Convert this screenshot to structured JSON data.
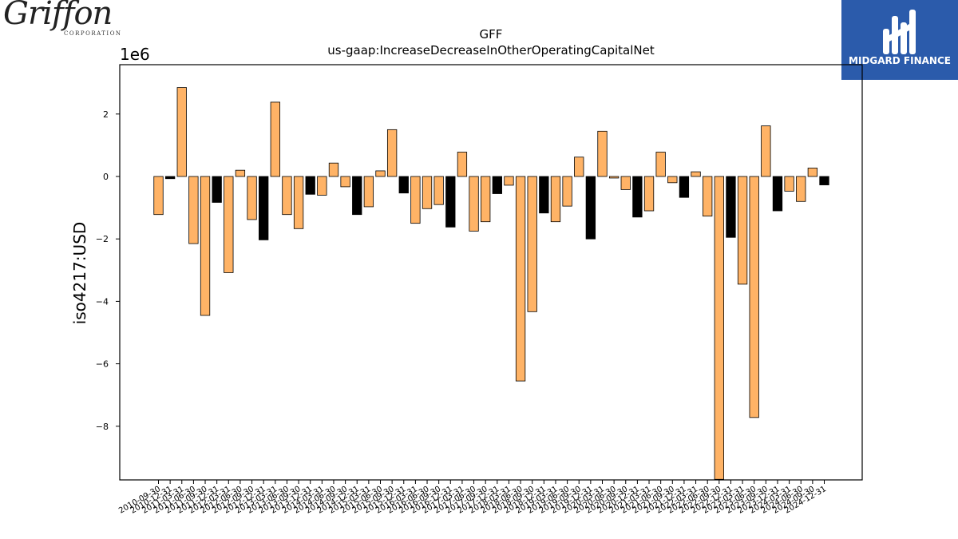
{
  "branding": {
    "left_logo": {
      "name": "Griffon",
      "subtitle": "CORPORATION"
    },
    "right_logo": {
      "name": "MIDGARD FINANCE",
      "background": "#2b5bab"
    }
  },
  "chart_data": {
    "type": "bar",
    "title": "GFF",
    "subtitle": "us-gaap:IncreaseDecreaseInOtherOperatingCapitalNet",
    "xlabel": "",
    "ylabel": "iso4217:USD",
    "y_scale_label": "1e6",
    "ylim": [
      -9.7,
      3.5
    ],
    "yticks": [
      -8,
      -6,
      -4,
      -2,
      0,
      2
    ],
    "ytick_labels": [
      "−8",
      "−6",
      "−4",
      "−2",
      "0",
      "2"
    ],
    "grid": false,
    "colors": {
      "annual": "#000000",
      "quarterly": "#ffb366",
      "edge": "#000000"
    },
    "categories": [
      "2010-09-30",
      "2010-12-31",
      "2011-03-31",
      "2011-06-30",
      "2011-09-30",
      "2011-12-31",
      "2012-03-31",
      "2012-06-30",
      "2012-09-30",
      "2012-12-31",
      "2013-03-31",
      "2013-06-30",
      "2013-09-30",
      "2013-12-31",
      "2014-03-31",
      "2014-06-30",
      "2014-09-30",
      "2014-12-31",
      "2015-03-31",
      "2015-06-30",
      "2015-09-30",
      "2015-12-31",
      "2016-03-31",
      "2016-06-30",
      "2016-09-30",
      "2016-12-31",
      "2017-03-31",
      "2017-06-30",
      "2017-09-30",
      "2017-12-31",
      "2018-03-31",
      "2018-06-30",
      "2018-09-30",
      "2018-12-31",
      "2019-03-31",
      "2019-06-30",
      "2019-09-30",
      "2019-12-31",
      "2020-03-31",
      "2020-06-30",
      "2020-09-30",
      "2020-12-31",
      "2021-03-31",
      "2021-06-30",
      "2021-09-30",
      "2021-12-31",
      "2022-03-31",
      "2022-06-30",
      "2022-09-30",
      "2022-12-31",
      "2023-03-31",
      "2023-06-30",
      "2023-09-30",
      "2023-12-31",
      "2024-03-31",
      "2024-06-30",
      "2024-09-30",
      "2024-12-31"
    ],
    "values": [
      -1.22,
      -0.07,
      2.85,
      -2.15,
      -4.45,
      -0.83,
      -3.08,
      0.2,
      -1.38,
      -2.03,
      2.38,
      -1.22,
      -1.67,
      -0.57,
      -0.6,
      0.43,
      -0.33,
      -1.22,
      -0.97,
      0.18,
      1.5,
      -0.53,
      -1.5,
      -1.03,
      -0.9,
      -1.62,
      0.78,
      -1.75,
      -1.45,
      -0.55,
      -0.28,
      -6.55,
      -4.33,
      -1.17,
      -1.45,
      -0.95,
      0.62,
      -2.0,
      1.45,
      -0.05,
      -0.42,
      -1.3,
      -1.1,
      0.78,
      -0.2,
      -0.67,
      0.15,
      -1.27,
      -9.7,
      -1.95,
      -3.45,
      -7.72,
      1.62,
      -1.1,
      -0.47,
      -0.8,
      0.27,
      -0.27
    ],
    "is_annual": [
      false,
      true,
      false,
      false,
      false,
      true,
      false,
      false,
      false,
      true,
      false,
      false,
      false,
      true,
      false,
      false,
      false,
      true,
      false,
      false,
      false,
      true,
      false,
      false,
      false,
      true,
      false,
      false,
      false,
      true,
      false,
      false,
      false,
      true,
      false,
      false,
      false,
      true,
      false,
      false,
      false,
      true,
      false,
      false,
      false,
      true,
      false,
      false,
      false,
      true,
      false,
      false,
      false,
      true,
      false,
      false,
      false,
      true
    ]
  }
}
